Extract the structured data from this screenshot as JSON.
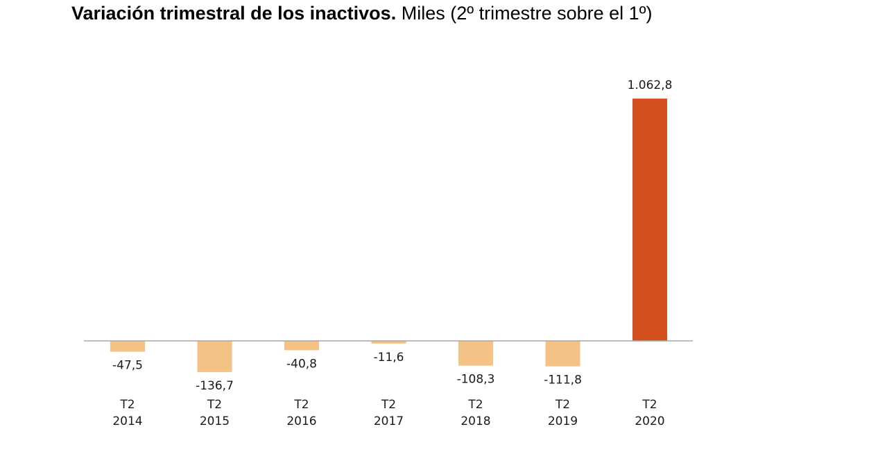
{
  "title": {
    "bold": "Variación trimestral de los inactivos.",
    "normal": "Miles (2º trimestre sobre el 1º)"
  },
  "chart_data": {
    "type": "bar",
    "title": "Variación trimestral de los inactivos. Miles (2º trimestre sobre el 1º)",
    "categories": [
      {
        "quarter": "T2",
        "year": "2014"
      },
      {
        "quarter": "T2",
        "year": "2015"
      },
      {
        "quarter": "T2",
        "year": "2016"
      },
      {
        "quarter": "T2",
        "year": "2017"
      },
      {
        "quarter": "T2",
        "year": "2018"
      },
      {
        "quarter": "T2",
        "year": "2019"
      },
      {
        "quarter": "T2",
        "year": "2020"
      }
    ],
    "values": [
      -47.5,
      -136.7,
      -40.8,
      -11.6,
      -108.3,
      -111.8,
      1062.8
    ],
    "value_labels": [
      "-47,5",
      "-136,7",
      "-40,8",
      "-11,6",
      "-108,3",
      "-111,8",
      "1.062,8"
    ],
    "colors": {
      "negative": "#F4C285",
      "highlight": "#D4501F",
      "axis": "#A6A6A6"
    },
    "xlabel": "",
    "ylabel": "",
    "grid": false
  }
}
